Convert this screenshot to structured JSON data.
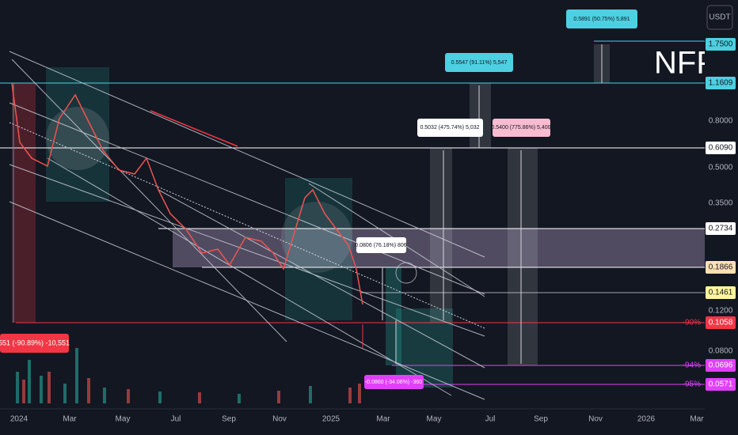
{
  "header": {
    "currency": "USDT",
    "watermark": "NFP"
  },
  "price_axis": [
    "1.7500",
    "1.1609",
    "0.8000",
    "0.6090",
    "0.5000",
    "0.3500",
    "0.2734",
    "0.1866",
    "0.1461",
    "0.1200",
    "0.1058",
    "0.0800",
    "0.0696",
    "0.0571"
  ],
  "levels": [
    "-90%",
    "-94%",
    "-95%"
  ],
  "time_axis": [
    "2024",
    "Mar",
    "May",
    "Jul",
    "Sep",
    "Nov",
    "2025",
    "Mar",
    "May",
    "Jul",
    "Sep",
    "Nov",
    "2026",
    "Mar"
  ],
  "annotations": [
    "0.5891 (50.75%) 5,891",
    "0.5547 (91.11%) 5,547",
    "0.5032 (475.74%) 5,032",
    "0.5400 (775.86%) 5,400",
    "0.0806 (76.18%) 806",
    "-0.0860 (-34.06%) -360",
    "551 (-90.89%) -10,551"
  ]
}
